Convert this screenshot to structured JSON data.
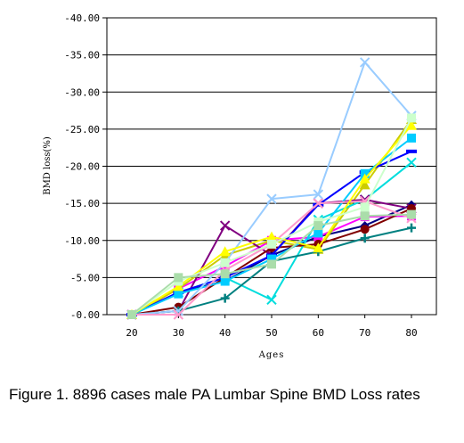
{
  "chart_data": {
    "type": "line",
    "title": "",
    "xlabel": "Ages",
    "ylabel": "BMD loss(%)",
    "x": [
      20,
      30,
      40,
      50,
      60,
      70,
      80
    ],
    "x_tick_labels": [
      "20",
      "30",
      "40",
      "50",
      "60",
      "70",
      "80"
    ],
    "y_tick_labels": [
      "-40.00",
      "-35.00",
      "-30.00",
      "-25.00",
      "-20.00",
      "-15.00",
      "-10.00",
      "-5.00",
      "-0.00"
    ],
    "ylim": [
      0,
      -40
    ],
    "y_axis": "reversed, 0 at bottom, -40 at top",
    "grid": "horizontal major gridlines",
    "legend": "none",
    "series": [
      {
        "color": "#000080",
        "marker": "diamond",
        "values": [
          0,
          -3.0,
          -4.5,
          -8.0,
          -10.5,
          -12.0,
          -14.8
        ]
      },
      {
        "color": "#ff00ff",
        "marker": "square",
        "values": [
          0,
          -3.5,
          -6.5,
          -10.0,
          -10.5,
          -13.2,
          -13.3
        ]
      },
      {
        "color": "#cccc00",
        "marker": "triangle",
        "values": [
          0,
          -3.5,
          -8.0,
          -10.0,
          -8.8,
          -17.5,
          -26.3
        ]
      },
      {
        "color": "#00dddd",
        "marker": "x",
        "values": [
          0,
          -3.0,
          -5.0,
          -2.0,
          -12.8,
          -15.5,
          -20.5
        ]
      },
      {
        "color": "#800080",
        "marker": "x",
        "values": [
          0,
          -0.5,
          -12.0,
          -8.0,
          -15.0,
          -15.5,
          -14.3
        ]
      },
      {
        "color": "#800000",
        "marker": "circle",
        "values": [
          0,
          -1.0,
          -5.0,
          -9.0,
          -9.5,
          -11.5,
          -14.3
        ]
      },
      {
        "color": "#008080",
        "marker": "plus",
        "values": [
          0,
          -0.5,
          -2.2,
          -7.2,
          -8.5,
          -10.3,
          -11.7
        ]
      },
      {
        "color": "#0000ff",
        "marker": "dash",
        "values": [
          0,
          -3.0,
          -5.0,
          -8.0,
          -14.8,
          -19.2,
          -22.0
        ]
      },
      {
        "color": "#00ccff",
        "marker": "square",
        "values": [
          0,
          -2.8,
          -4.5,
          -7.5,
          -11.0,
          -19.0,
          -23.8
        ]
      },
      {
        "color": "#99ccff",
        "marker": "x",
        "values": [
          0,
          -0.5,
          -7.0,
          -15.6,
          -16.2,
          -34.0,
          -26.8
        ]
      },
      {
        "color": "#ff99cc",
        "marker": "x",
        "values": [
          0,
          0,
          -6.0,
          -9.5,
          -15.0,
          -15.3,
          -13.0
        ]
      },
      {
        "color": "#ffff00",
        "marker": "triangle",
        "values": [
          0,
          -3.8,
          -8.5,
          -10.5,
          -9.0,
          -18.3,
          -25.5
        ]
      },
      {
        "color": "#ccffcc",
        "marker": "square",
        "values": [
          0,
          -4.5,
          -7.0,
          -9.5,
          -12.5,
          -14.5,
          -26.5
        ]
      },
      {
        "color": "#aaddaa",
        "marker": "square",
        "values": [
          0,
          -5.0,
          -5.5,
          -6.8,
          -12.0,
          -13.3,
          -13.5
        ]
      }
    ]
  },
  "caption": "Figure 1. 8896 cases male PA Lumbar Spine BMD Loss rates"
}
